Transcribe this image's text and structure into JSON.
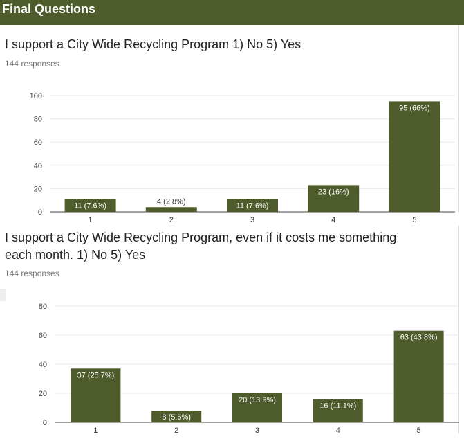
{
  "header": {
    "title": "Final Questions"
  },
  "questions": [
    {
      "title": "I support a City Wide Recycling Program 1) No 5) Yes",
      "responses": "144 responses"
    },
    {
      "title_line1": "I support a City Wide Recycling Program, even if it costs me something",
      "title_line2": "each month. 1) No 5) Yes",
      "responses": "144 responses"
    }
  ],
  "colors": {
    "bar": "#4e5b2b",
    "header": "#4e5b2b",
    "grid": "#e8e8e8"
  },
  "chart_data": [
    {
      "type": "bar",
      "title": "I support a City Wide Recycling Program 1) No 5) Yes",
      "categories": [
        "1",
        "2",
        "3",
        "4",
        "5"
      ],
      "values": [
        11,
        4,
        11,
        23,
        95
      ],
      "data_labels": [
        "11 (7.6%)",
        "4 (2.8%)",
        "11 (7.6%)",
        "23 (16%)",
        "95 (66%)"
      ],
      "yticks": [
        0,
        20,
        40,
        60,
        80,
        100
      ],
      "ylim": [
        0,
        100
      ],
      "grid": true
    },
    {
      "type": "bar",
      "title": "I support a City Wide Recycling Program, even if it costs me something each month. 1) No 5) Yes",
      "categories": [
        "1",
        "2",
        "3",
        "4",
        "5"
      ],
      "values": [
        37,
        8,
        20,
        16,
        63
      ],
      "data_labels": [
        "37 (25.7%)",
        "8 (5.6%)",
        "20 (13.9%)",
        "16 (11.1%)",
        "63 (43.8%)"
      ],
      "yticks": [
        0,
        20,
        40,
        60,
        80
      ],
      "ylim": [
        0,
        80
      ],
      "grid": true
    }
  ]
}
